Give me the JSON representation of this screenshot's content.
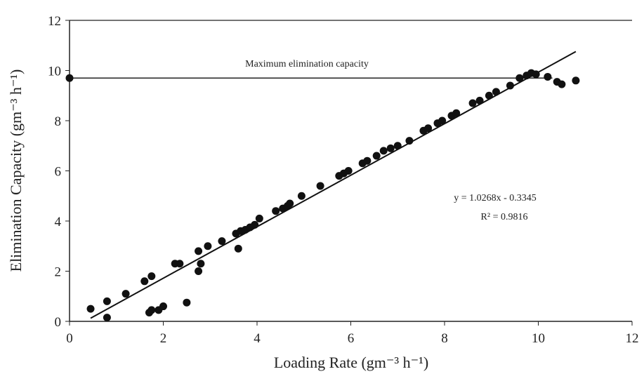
{
  "chart_data": {
    "type": "scatter",
    "x_label": "Loading Rate (gm⁻³ h⁻¹)",
    "y_label": "Elimination Capacity (gm⁻³ h⁻¹)",
    "xlim": [
      0,
      12
    ],
    "xticks": [
      0,
      2,
      4,
      6,
      8,
      10,
      12
    ],
    "ylim": [
      0,
      12
    ],
    "yticks": [
      0,
      2,
      4,
      6,
      8,
      10,
      12
    ],
    "grid": false,
    "series": [
      {
        "color": "#111111",
        "x": [
          0,
          0.45,
          0.8,
          0.8,
          1.2,
          1.6,
          1.75,
          1.7,
          1.75,
          1.9,
          2.0,
          2.25,
          2.35,
          2.5,
          2.75,
          2.8,
          2.75,
          2.95,
          3.25,
          3.55,
          3.6,
          3.65,
          3.75,
          3.85,
          3.95,
          4.05,
          4.4,
          4.55,
          4.65,
          4.7,
          4.95,
          5.35,
          5.75,
          5.85,
          5.95,
          6.25,
          6.35,
          6.55,
          6.7,
          6.85,
          7.0,
          7.25,
          7.55,
          7.65,
          7.85,
          7.95,
          8.15,
          8.25,
          8.6,
          8.75,
          8.95,
          9.1,
          9.4,
          9.6,
          9.75,
          9.85,
          9.95,
          10.2,
          10.4,
          10.5,
          10.8
        ],
        "values": [
          9.7,
          0.5,
          0.8,
          0.15,
          1.1,
          1.6,
          1.8,
          0.35,
          0.45,
          0.45,
          0.6,
          2.3,
          2.3,
          0.75,
          2.0,
          2.3,
          2.8,
          3.0,
          3.2,
          3.5,
          2.9,
          3.6,
          3.65,
          3.75,
          3.85,
          4.1,
          4.4,
          4.5,
          4.6,
          4.7,
          5.0,
          5.4,
          5.8,
          5.9,
          6.0,
          6.3,
          6.4,
          6.6,
          6.8,
          6.9,
          7.0,
          7.2,
          7.6,
          7.7,
          7.9,
          8.0,
          8.2,
          8.3,
          8.7,
          8.8,
          9.0,
          9.15,
          9.4,
          9.7,
          9.8,
          9.9,
          9.85,
          9.75,
          9.55,
          9.45,
          9.6
        ]
      }
    ],
    "trendline": {
      "slope": 1.0268,
      "intercept": -0.3345,
      "x_range": [
        0.45,
        10.8
      ],
      "equation": "y = 1.0268x - 0.3345",
      "r2_label": "R² = 0.9816"
    },
    "reference_line": {
      "value": 9.7,
      "label": "Maximum elimination capacity"
    }
  }
}
